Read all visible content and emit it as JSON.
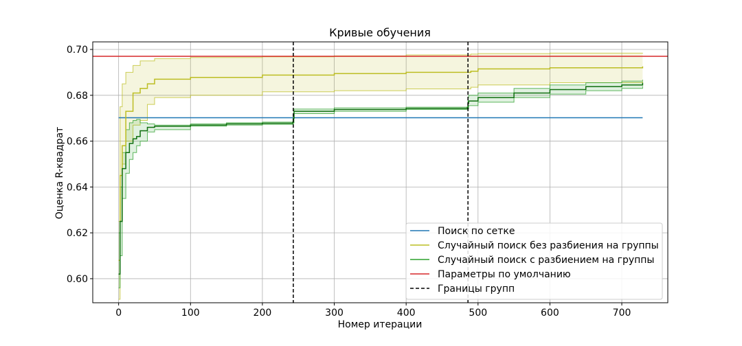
{
  "chart_data": {
    "type": "line",
    "title": "Кривые обучения",
    "xlabel": "Номер итерации",
    "ylabel": "Оценка R-квадрат",
    "xlim": [
      -36,
      764
    ],
    "ylim": [
      0.5895,
      0.7033
    ],
    "xticks": [
      0,
      100,
      200,
      300,
      400,
      500,
      600,
      700
    ],
    "yticks": [
      0.6,
      0.62,
      0.64,
      0.66,
      0.68,
      0.7
    ],
    "xtick_labels": [
      "0",
      "100",
      "200",
      "300",
      "400",
      "500",
      "600",
      "700"
    ],
    "ytick_labels": [
      "0.60",
      "0.62",
      "0.64",
      "0.66",
      "0.68",
      "0.70"
    ],
    "grid": true,
    "legend_position": "lower-right",
    "series": [
      {
        "name": "Поиск по сетке",
        "color": "#1f77b4",
        "style": "solid",
        "x": [
          0,
          729
        ],
        "y": [
          0.6702,
          0.6702
        ]
      },
      {
        "name": "Случайный поиск без разбиения на группы",
        "color": "#bcbd22",
        "style": "solid",
        "x": [
          0,
          2,
          5,
          10,
          20,
          30,
          40,
          50,
          100,
          200,
          300,
          400,
          490,
          500,
          600,
          729
        ],
        "y": [
          0.608,
          0.645,
          0.658,
          0.673,
          0.681,
          0.683,
          0.685,
          0.687,
          0.6878,
          0.6888,
          0.6895,
          0.69,
          0.6905,
          0.6915,
          0.692,
          0.6926
        ],
        "band_upper": [
          0.625,
          0.675,
          0.685,
          0.69,
          0.693,
          0.695,
          0.695,
          0.696,
          0.6965,
          0.6968,
          0.6972,
          0.6976,
          0.698,
          0.6982,
          0.6984,
          0.6985
        ],
        "band_lower": [
          0.591,
          0.625,
          0.65,
          0.66,
          0.667,
          0.669,
          0.676,
          0.679,
          0.68,
          0.6815,
          0.682,
          0.6828,
          0.6835,
          0.6845,
          0.6855,
          0.686
        ]
      },
      {
        "name": "Случайный поиск с разбиением на группы",
        "color": "#2ca02c",
        "style": "solid",
        "x": [
          0,
          2,
          5,
          10,
          15,
          20,
          25,
          30,
          40,
          50,
          100,
          150,
          200,
          242,
          243,
          244,
          300,
          400,
          485,
          486,
          487,
          500,
          550,
          600,
          650,
          700,
          729
        ],
        "y": [
          0.602,
          0.625,
          0.648,
          0.655,
          0.659,
          0.661,
          0.662,
          0.6645,
          0.666,
          0.6665,
          0.667,
          0.6675,
          0.6678,
          0.668,
          0.67,
          0.673,
          0.6738,
          0.6743,
          0.6745,
          0.6765,
          0.6775,
          0.679,
          0.681,
          0.6825,
          0.6838,
          0.6845,
          0.6855
        ],
        "band_upper": [
          0.62,
          0.64,
          0.655,
          0.665,
          0.668,
          0.669,
          0.6695,
          0.668,
          0.6675,
          0.667,
          0.6675,
          0.668,
          0.6683,
          0.6685,
          0.672,
          0.674,
          0.6745,
          0.6748,
          0.675,
          0.679,
          0.68,
          0.681,
          0.683,
          0.6845,
          0.6855,
          0.6862,
          0.6868
        ],
        "band_lower": [
          0.596,
          0.61,
          0.635,
          0.646,
          0.652,
          0.655,
          0.658,
          0.66,
          0.664,
          0.665,
          0.6665,
          0.667,
          0.6673,
          0.6675,
          0.668,
          0.672,
          0.673,
          0.6738,
          0.674,
          0.674,
          0.6755,
          0.677,
          0.679,
          0.6805,
          0.682,
          0.683,
          0.684
        ]
      },
      {
        "name": "Параметры по умолчанию",
        "color": "#d62728",
        "style": "solid",
        "x": [
          -36,
          764
        ],
        "y": [
          0.697,
          0.697
        ]
      },
      {
        "name": "Границы групп",
        "color": "#000000",
        "style": "dashed",
        "vertical_lines_x": [
          243,
          486
        ]
      }
    ]
  }
}
